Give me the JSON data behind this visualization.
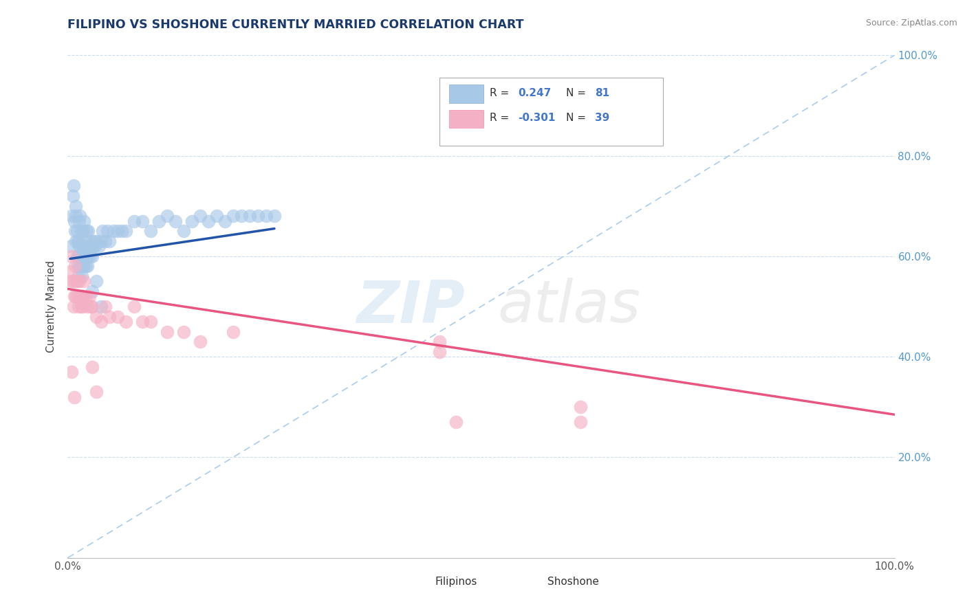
{
  "title": "FILIPINO VS SHOSHONE CURRENTLY MARRIED CORRELATION CHART",
  "source": "Source: ZipAtlas.com",
  "ylabel": "Currently Married",
  "xlim": [
    0.0,
    1.0
  ],
  "ylim": [
    0.0,
    1.0
  ],
  "legend_r_filipino": "0.247",
  "legend_n_filipino": "81",
  "legend_r_shoshone": "-0.301",
  "legend_n_shoshone": "39",
  "filipino_color": "#a8c8e8",
  "shoshone_color": "#f4b0c4",
  "filipino_line_color": "#2255aa",
  "shoshone_line_color": "#e85580",
  "diagonal_color": "#aaccee",
  "title_color": "#1a3a6e",
  "ytick_color": "#5599cc",
  "watermark_zip": "ZIP",
  "watermark_atlas": "atlas",
  "filipino_scatter_x": [
    0.004,
    0.005,
    0.006,
    0.007,
    0.008,
    0.009,
    0.01,
    0.01,
    0.01,
    0.011,
    0.011,
    0.012,
    0.012,
    0.013,
    0.013,
    0.014,
    0.014,
    0.015,
    0.015,
    0.015,
    0.016,
    0.016,
    0.017,
    0.017,
    0.018,
    0.018,
    0.019,
    0.019,
    0.02,
    0.02,
    0.02,
    0.021,
    0.021,
    0.022,
    0.022,
    0.023,
    0.023,
    0.024,
    0.024,
    0.025,
    0.025,
    0.026,
    0.027,
    0.028,
    0.029,
    0.03,
    0.031,
    0.032,
    0.033,
    0.035,
    0.038,
    0.04,
    0.042,
    0.045,
    0.048,
    0.05,
    0.055,
    0.06,
    0.065,
    0.07,
    0.08,
    0.09,
    0.1,
    0.11,
    0.12,
    0.13,
    0.14,
    0.15,
    0.16,
    0.17,
    0.18,
    0.19,
    0.2,
    0.21,
    0.22,
    0.23,
    0.24,
    0.25,
    0.03,
    0.035,
    0.04
  ],
  "filipino_scatter_y": [
    0.62,
    0.68,
    0.72,
    0.74,
    0.67,
    0.65,
    0.7,
    0.68,
    0.63,
    0.6,
    0.65,
    0.58,
    0.63,
    0.6,
    0.56,
    0.62,
    0.67,
    0.58,
    0.63,
    0.68,
    0.6,
    0.65,
    0.6,
    0.56,
    0.62,
    0.58,
    0.62,
    0.65,
    0.58,
    0.62,
    0.67,
    0.6,
    0.63,
    0.58,
    0.62,
    0.6,
    0.65,
    0.58,
    0.62,
    0.6,
    0.65,
    0.62,
    0.6,
    0.62,
    0.63,
    0.6,
    0.62,
    0.63,
    0.62,
    0.63,
    0.62,
    0.63,
    0.65,
    0.63,
    0.65,
    0.63,
    0.65,
    0.65,
    0.65,
    0.65,
    0.67,
    0.67,
    0.65,
    0.67,
    0.68,
    0.67,
    0.65,
    0.67,
    0.68,
    0.67,
    0.68,
    0.67,
    0.68,
    0.68,
    0.68,
    0.68,
    0.68,
    0.68,
    0.53,
    0.55,
    0.5
  ],
  "shoshone_scatter_x": [
    0.003,
    0.004,
    0.005,
    0.006,
    0.007,
    0.008,
    0.009,
    0.01,
    0.01,
    0.011,
    0.012,
    0.013,
    0.014,
    0.015,
    0.016,
    0.017,
    0.018,
    0.019,
    0.02,
    0.022,
    0.024,
    0.026,
    0.028,
    0.03,
    0.035,
    0.04,
    0.045,
    0.05,
    0.06,
    0.07,
    0.08,
    0.09,
    0.1,
    0.12,
    0.14,
    0.16,
    0.2,
    0.45,
    0.62
  ],
  "shoshone_scatter_y": [
    0.57,
    0.55,
    0.6,
    0.55,
    0.5,
    0.52,
    0.58,
    0.55,
    0.52,
    0.55,
    0.52,
    0.5,
    0.55,
    0.52,
    0.5,
    0.52,
    0.5,
    0.52,
    0.55,
    0.52,
    0.5,
    0.52,
    0.5,
    0.5,
    0.48,
    0.47,
    0.5,
    0.48,
    0.48,
    0.47,
    0.5,
    0.47,
    0.47,
    0.45,
    0.45,
    0.43,
    0.45,
    0.43,
    0.3
  ],
  "shoshone_extra_x": [
    0.005,
    0.008,
    0.03,
    0.035,
    0.45,
    0.47,
    0.62
  ],
  "shoshone_extra_y": [
    0.37,
    0.32,
    0.38,
    0.33,
    0.41,
    0.27,
    0.27
  ],
  "fil_trend_x0": 0.003,
  "fil_trend_x1": 0.25,
  "fil_trend_y0": 0.595,
  "fil_trend_y1": 0.655,
  "sho_trend_x0": 0.0,
  "sho_trend_x1": 1.0,
  "sho_trend_y0": 0.535,
  "sho_trend_y1": 0.285
}
